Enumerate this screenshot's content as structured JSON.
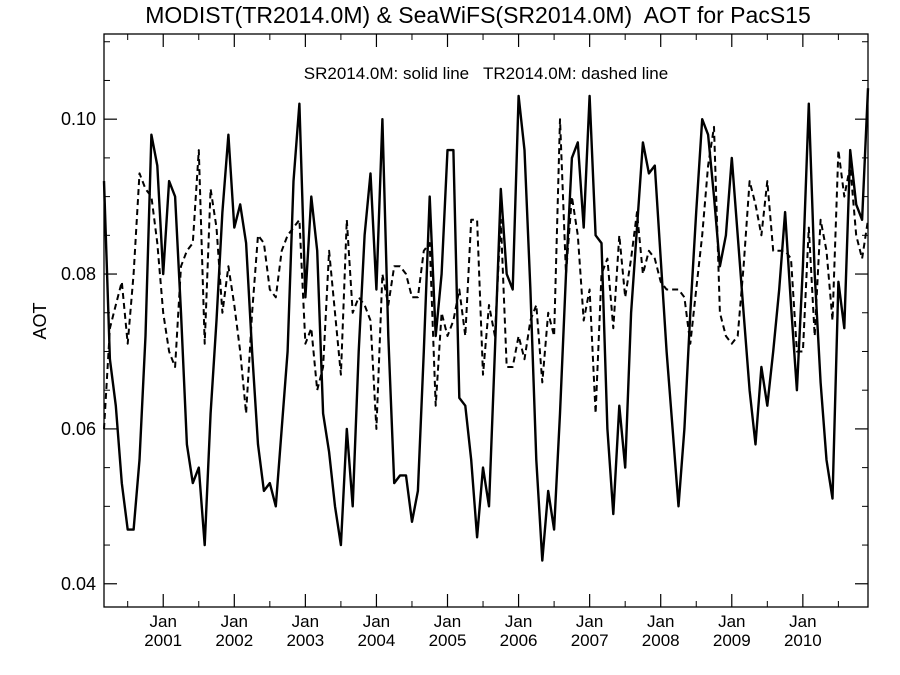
{
  "chart_data": {
    "type": "line",
    "title": "MODIST(TR2014.0M) & SeaWiFS(SR2014.0M)  AOT for PacS15",
    "annotation": "SR2014.0M: solid line   TR2014.0M: dashed line",
    "ylabel": "AOT",
    "xlabel": "",
    "xlim": [
      "2000-03",
      "2010-12"
    ],
    "ylim": [
      0.037,
      0.111
    ],
    "yticks": [
      0.04,
      0.06,
      0.08,
      0.1
    ],
    "ytick_labels": [
      "0.04",
      "0.06",
      "0.08",
      "0.10"
    ],
    "xticks": [
      {
        "date": "2001-01",
        "month": "Jan",
        "year": "2001"
      },
      {
        "date": "2002-01",
        "month": "Jan",
        "year": "2002"
      },
      {
        "date": "2003-01",
        "month": "Jan",
        "year": "2003"
      },
      {
        "date": "2004-01",
        "month": "Jan",
        "year": "2004"
      },
      {
        "date": "2005-01",
        "month": "Jan",
        "year": "2005"
      },
      {
        "date": "2006-01",
        "month": "Jan",
        "year": "2006"
      },
      {
        "date": "2007-01",
        "month": "Jan",
        "year": "2007"
      },
      {
        "date": "2008-01",
        "month": "Jan",
        "year": "2008"
      },
      {
        "date": "2009-01",
        "month": "Jan",
        "year": "2009"
      },
      {
        "date": "2010-01",
        "month": "Jan",
        "year": "2010"
      }
    ],
    "legend": "text annotation at top",
    "grid": false,
    "series": [
      {
        "name": "SR2014.0M",
        "style": "solid",
        "color": "#000000",
        "points": [
          [
            "2000-03",
            0.092
          ],
          [
            "2000-04",
            0.069
          ],
          [
            "2000-05",
            0.063
          ],
          [
            "2000-06",
            0.053
          ],
          [
            "2000-07",
            0.047
          ],
          [
            "2000-08",
            0.047
          ],
          [
            "2000-09",
            0.056
          ],
          [
            "2000-10",
            0.072
          ],
          [
            "2000-11",
            0.098
          ],
          [
            "2000-12",
            0.094
          ],
          [
            "2001-01",
            0.08
          ],
          [
            "2001-02",
            0.092
          ],
          [
            "2001-03",
            0.09
          ],
          [
            "2001-04",
            0.075
          ],
          [
            "2001-05",
            0.058
          ],
          [
            "2001-06",
            0.053
          ],
          [
            "2001-07",
            0.055
          ],
          [
            "2001-08",
            0.045
          ],
          [
            "2001-09",
            0.062
          ],
          [
            "2001-10",
            0.074
          ],
          [
            "2001-11",
            0.088
          ],
          [
            "2001-12",
            0.098
          ],
          [
            "2002-01",
            0.086
          ],
          [
            "2002-02",
            0.089
          ],
          [
            "2002-03",
            0.084
          ],
          [
            "2002-04",
            0.07
          ],
          [
            "2002-05",
            0.058
          ],
          [
            "2002-06",
            0.052
          ],
          [
            "2002-07",
            0.053
          ],
          [
            "2002-08",
            0.05
          ],
          [
            "2002-09",
            0.06
          ],
          [
            "2002-10",
            0.07
          ],
          [
            "2002-11",
            0.092
          ],
          [
            "2002-12",
            0.102
          ],
          [
            "2003-01",
            0.077
          ],
          [
            "2003-02",
            0.09
          ],
          [
            "2003-03",
            0.083
          ],
          [
            "2003-04",
            0.062
          ],
          [
            "2003-05",
            0.057
          ],
          [
            "2003-06",
            0.05
          ],
          [
            "2003-07",
            0.045
          ],
          [
            "2003-08",
            0.06
          ],
          [
            "2003-09",
            0.05
          ],
          [
            "2003-10",
            0.07
          ],
          [
            "2003-11",
            0.085
          ],
          [
            "2003-12",
            0.093
          ],
          [
            "2004-01",
            0.078
          ],
          [
            "2004-02",
            0.1
          ],
          [
            "2004-03",
            0.072
          ],
          [
            "2004-04",
            0.053
          ],
          [
            "2004-05",
            0.054
          ],
          [
            "2004-06",
            0.054
          ],
          [
            "2004-07",
            0.048
          ],
          [
            "2004-08",
            0.052
          ],
          [
            "2004-09",
            0.07
          ],
          [
            "2004-10",
            0.09
          ],
          [
            "2004-11",
            0.072
          ],
          [
            "2004-12",
            0.08
          ],
          [
            "2005-01",
            0.096
          ],
          [
            "2005-02",
            0.096
          ],
          [
            "2005-03",
            0.064
          ],
          [
            "2005-04",
            0.063
          ],
          [
            "2005-05",
            0.056
          ],
          [
            "2005-06",
            0.046
          ],
          [
            "2005-07",
            0.055
          ],
          [
            "2005-08",
            0.05
          ],
          [
            "2005-09",
            0.07
          ],
          [
            "2005-10",
            0.091
          ],
          [
            "2005-11",
            0.08
          ],
          [
            "2005-12",
            0.078
          ],
          [
            "2006-01",
            0.103
          ],
          [
            "2006-02",
            0.096
          ],
          [
            "2006-03",
            0.078
          ],
          [
            "2006-04",
            0.056
          ],
          [
            "2006-05",
            0.043
          ],
          [
            "2006-06",
            0.052
          ],
          [
            "2006-07",
            0.047
          ],
          [
            "2006-08",
            0.062
          ],
          [
            "2006-09",
            0.08
          ],
          [
            "2006-10",
            0.095
          ],
          [
            "2006-11",
            0.097
          ],
          [
            "2006-12",
            0.086
          ],
          [
            "2007-01",
            0.103
          ],
          [
            "2007-02",
            0.085
          ],
          [
            "2007-03",
            0.084
          ],
          [
            "2007-04",
            0.06
          ],
          [
            "2007-05",
            0.049
          ],
          [
            "2007-06",
            0.063
          ],
          [
            "2007-07",
            0.055
          ],
          [
            "2007-08",
            0.075
          ],
          [
            "2007-09",
            0.086
          ],
          [
            "2007-10",
            0.097
          ],
          [
            "2007-11",
            0.093
          ],
          [
            "2007-12",
            0.094
          ],
          [
            "2008-01",
            0.082
          ],
          [
            "2008-02",
            0.07
          ],
          [
            "2008-03",
            0.06
          ],
          [
            "2008-04",
            0.05
          ],
          [
            "2008-05",
            0.06
          ],
          [
            "2008-06",
            0.075
          ],
          [
            "2008-07",
            0.088
          ],
          [
            "2008-08",
            0.1
          ],
          [
            "2008-09",
            0.098
          ],
          [
            "2008-10",
            0.09
          ],
          [
            "2008-11",
            0.081
          ],
          [
            "2008-12",
            0.085
          ],
          [
            "2009-01",
            0.095
          ],
          [
            "2009-02",
            0.085
          ],
          [
            "2009-03",
            0.075
          ],
          [
            "2009-04",
            0.065
          ],
          [
            "2009-05",
            0.058
          ],
          [
            "2009-06",
            0.068
          ],
          [
            "2009-07",
            0.063
          ],
          [
            "2009-08",
            0.07
          ],
          [
            "2009-09",
            0.078
          ],
          [
            "2009-10",
            0.088
          ],
          [
            "2009-11",
            0.076
          ],
          [
            "2009-12",
            0.065
          ],
          [
            "2010-01",
            0.081
          ],
          [
            "2010-02",
            0.102
          ],
          [
            "2010-03",
            0.08
          ],
          [
            "2010-04",
            0.066
          ],
          [
            "2010-05",
            0.056
          ],
          [
            "2010-06",
            0.051
          ],
          [
            "2010-07",
            0.079
          ],
          [
            "2010-08",
            0.073
          ],
          [
            "2010-09",
            0.096
          ],
          [
            "2010-10",
            0.089
          ],
          [
            "2010-11",
            0.087
          ],
          [
            "2010-12",
            0.104
          ]
        ]
      },
      {
        "name": "TR2014.0M",
        "style": "dashed",
        "color": "#000000",
        "points": [
          [
            "2000-03",
            0.06
          ],
          [
            "2000-04",
            0.073
          ],
          [
            "2000-05",
            0.076
          ],
          [
            "2000-06",
            0.079
          ],
          [
            "2000-07",
            0.071
          ],
          [
            "2000-08",
            0.08
          ],
          [
            "2000-09",
            0.093
          ],
          [
            "2000-10",
            0.091
          ],
          [
            "2000-11",
            0.09
          ],
          [
            "2000-12",
            0.084
          ],
          [
            "2001-01",
            0.075
          ],
          [
            "2001-02",
            0.07
          ],
          [
            "2001-03",
            0.068
          ],
          [
            "2001-04",
            0.081
          ],
          [
            "2001-05",
            0.083
          ],
          [
            "2001-06",
            0.084
          ],
          [
            "2001-07",
            0.096
          ],
          [
            "2001-08",
            0.071
          ],
          [
            "2001-09",
            0.091
          ],
          [
            "2001-10",
            0.086
          ],
          [
            "2001-11",
            0.075
          ],
          [
            "2001-12",
            0.081
          ],
          [
            "2002-01",
            0.076
          ],
          [
            "2002-02",
            0.07
          ],
          [
            "2002-03",
            0.062
          ],
          [
            "2002-04",
            0.075
          ],
          [
            "2002-05",
            0.085
          ],
          [
            "2002-06",
            0.084
          ],
          [
            "2002-07",
            0.078
          ],
          [
            "2002-08",
            0.077
          ],
          [
            "2002-09",
            0.083
          ],
          [
            "2002-10",
            0.085
          ],
          [
            "2002-11",
            0.086
          ],
          [
            "2002-12",
            0.087
          ],
          [
            "2003-01",
            0.071
          ],
          [
            "2003-02",
            0.073
          ],
          [
            "2003-03",
            0.065
          ],
          [
            "2003-04",
            0.068
          ],
          [
            "2003-05",
            0.083
          ],
          [
            "2003-06",
            0.075
          ],
          [
            "2003-07",
            0.067
          ],
          [
            "2003-08",
            0.087
          ],
          [
            "2003-09",
            0.075
          ],
          [
            "2003-10",
            0.077
          ],
          [
            "2003-11",
            0.076
          ],
          [
            "2003-12",
            0.074
          ],
          [
            "2004-01",
            0.06
          ],
          [
            "2004-02",
            0.08
          ],
          [
            "2004-03",
            0.076
          ],
          [
            "2004-04",
            0.081
          ],
          [
            "2004-05",
            0.081
          ],
          [
            "2004-06",
            0.08
          ],
          [
            "2004-07",
            0.077
          ],
          [
            "2004-08",
            0.077
          ],
          [
            "2004-09",
            0.083
          ],
          [
            "2004-10",
            0.084
          ],
          [
            "2004-11",
            0.063
          ],
          [
            "2004-12",
            0.075
          ],
          [
            "2005-01",
            0.072
          ],
          [
            "2005-02",
            0.074
          ],
          [
            "2005-03",
            0.078
          ],
          [
            "2005-04",
            0.072
          ],
          [
            "2005-05",
            0.087
          ],
          [
            "2005-06",
            0.087
          ],
          [
            "2005-07",
            0.067
          ],
          [
            "2005-08",
            0.076
          ],
          [
            "2005-09",
            0.072
          ],
          [
            "2005-10",
            0.087
          ],
          [
            "2005-11",
            0.068
          ],
          [
            "2005-12",
            0.068
          ],
          [
            "2006-01",
            0.072
          ],
          [
            "2006-02",
            0.069
          ],
          [
            "2006-03",
            0.074
          ],
          [
            "2006-04",
            0.076
          ],
          [
            "2006-05",
            0.066
          ],
          [
            "2006-06",
            0.075
          ],
          [
            "2006-07",
            0.072
          ],
          [
            "2006-08",
            0.1
          ],
          [
            "2006-09",
            0.08
          ],
          [
            "2006-10",
            0.09
          ],
          [
            "2006-11",
            0.085
          ],
          [
            "2006-12",
            0.074
          ],
          [
            "2007-01",
            0.078
          ],
          [
            "2007-02",
            0.062
          ],
          [
            "2007-03",
            0.08
          ],
          [
            "2007-04",
            0.082
          ],
          [
            "2007-05",
            0.073
          ],
          [
            "2007-06",
            0.085
          ],
          [
            "2007-07",
            0.077
          ],
          [
            "2007-08",
            0.082
          ],
          [
            "2007-09",
            0.088
          ],
          [
            "2007-10",
            0.08
          ],
          [
            "2007-11",
            0.083
          ],
          [
            "2007-12",
            0.082
          ],
          [
            "2008-01",
            0.079
          ],
          [
            "2008-02",
            0.078
          ],
          [
            "2008-03",
            0.078
          ],
          [
            "2008-04",
            0.078
          ],
          [
            "2008-05",
            0.077
          ],
          [
            "2008-06",
            0.071
          ],
          [
            "2008-07",
            0.078
          ],
          [
            "2008-08",
            0.085
          ],
          [
            "2008-09",
            0.094
          ],
          [
            "2008-10",
            0.099
          ],
          [
            "2008-11",
            0.075
          ],
          [
            "2008-12",
            0.072
          ],
          [
            "2009-01",
            0.071
          ],
          [
            "2009-02",
            0.072
          ],
          [
            "2009-03",
            0.081
          ],
          [
            "2009-04",
            0.092
          ],
          [
            "2009-05",
            0.089
          ],
          [
            "2009-06",
            0.085
          ],
          [
            "2009-07",
            0.092
          ],
          [
            "2009-08",
            0.083
          ],
          [
            "2009-09",
            0.083
          ],
          [
            "2009-10",
            0.083
          ],
          [
            "2009-11",
            0.082
          ],
          [
            "2009-12",
            0.07
          ],
          [
            "2010-01",
            0.07
          ],
          [
            "2010-02",
            0.086
          ],
          [
            "2010-03",
            0.072
          ],
          [
            "2010-04",
            0.087
          ],
          [
            "2010-05",
            0.083
          ],
          [
            "2010-06",
            0.074
          ],
          [
            "2010-07",
            0.096
          ],
          [
            "2010-08",
            0.09
          ],
          [
            "2010-09",
            0.094
          ],
          [
            "2010-10",
            0.085
          ],
          [
            "2010-11",
            0.082
          ],
          [
            "2010-12",
            0.087
          ]
        ]
      }
    ]
  }
}
